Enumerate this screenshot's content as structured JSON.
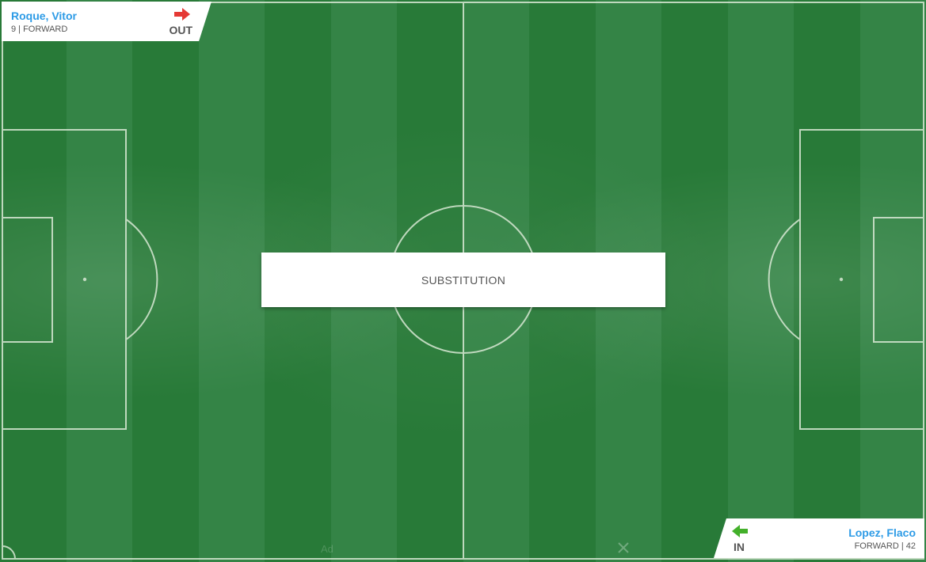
{
  "event": {
    "label": "SUBSTITUTION"
  },
  "player_out": {
    "name": "Roque, Vitor",
    "meta": "9 | FORWARD",
    "status": "OUT",
    "arrow_color": "#e53935",
    "icon": "arrow-right-icon"
  },
  "player_in": {
    "name": "Lopez, Flaco",
    "meta": "FORWARD | 42",
    "status": "IN",
    "arrow_color": "#43b02a",
    "icon": "arrow-left-icon"
  },
  "ad": {
    "label": "Ad",
    "close_icon": "close-icon"
  },
  "colors": {
    "pitch_dark": "#287a38",
    "pitch_light": "#348446",
    "line": "#d8e8d4",
    "name": "#2d9be6"
  }
}
